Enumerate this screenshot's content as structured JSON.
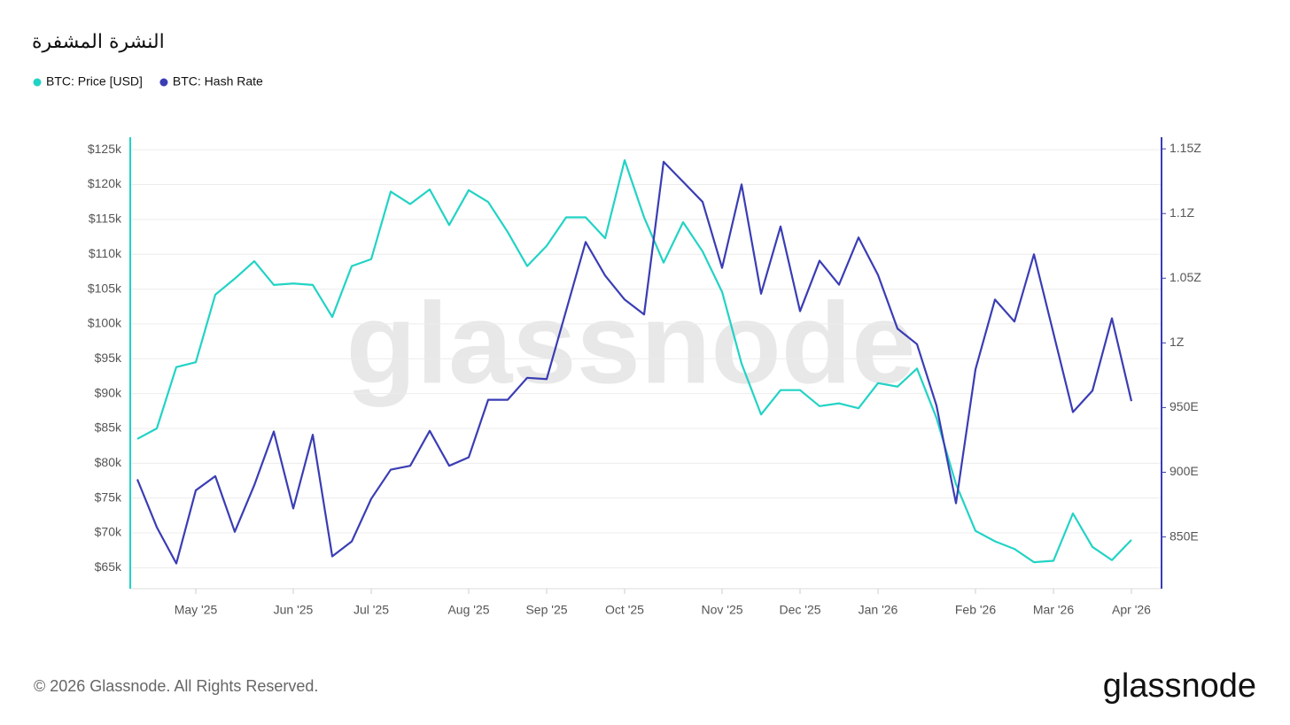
{
  "chart_data": {
    "type": "line",
    "title": "النشرة المشفرة",
    "categories": [
      null,
      null,
      null,
      "May '25",
      null,
      null,
      null,
      null,
      "Jun '25",
      null,
      null,
      null,
      "Jul '25",
      null,
      null,
      null,
      null,
      "Aug '25",
      null,
      null,
      null,
      "Sep '25",
      null,
      null,
      null,
      "Oct '25",
      null,
      null,
      null,
      null,
      "Nov '25",
      null,
      null,
      null,
      "Dec '25",
      null,
      null,
      null,
      "Jan '26",
      null,
      null,
      null,
      null,
      "Feb '26",
      null,
      null,
      null,
      "Mar '26",
      null,
      null,
      null,
      "Apr '26"
    ],
    "series": [
      {
        "name": "BTC: Price [USD]",
        "color": "#22d3c5",
        "values": [
          83500,
          85000,
          93800,
          94500,
          104200,
          106500,
          109000,
          105600,
          105800,
          105600,
          101000,
          108300,
          109300,
          119000,
          117200,
          119300,
          114200,
          119200,
          117500,
          113200,
          108300,
          111200,
          115300,
          115300,
          112300,
          123500,
          115300,
          108800,
          114600,
          110400,
          104600,
          94300,
          87000,
          90500,
          90500,
          88200,
          88600,
          87900,
          91500,
          91000,
          93600,
          86500,
          77000,
          70300,
          68800,
          67700,
          65800,
          66000,
          72800,
          68000,
          66100,
          69000
        ]
      },
      {
        "name": "BTC: Hash Rate",
        "color": "#3a3db4",
        "axis": "y2",
        "values": [
          894.5,
          857.5,
          829.5,
          886,
          897,
          854,
          890,
          931.5,
          872,
          929,
          835,
          846.5,
          879.5,
          902,
          905,
          932,
          905,
          911.5,
          956,
          956,
          973,
          972,
          1025,
          1078,
          1052,
          1033.5,
          1022,
          1140,
          1124.5,
          1109,
          1058,
          1122.5,
          1038,
          1090,
          1024.5,
          1063.5,
          1045,
          1081.5,
          1052.5,
          1011,
          999,
          951.5,
          876,
          979.5,
          1033.5,
          1016.5,
          1068.5,
          1007.5,
          946.5,
          963,
          1019,
          955
        ]
      }
    ],
    "ylim": [
      62000,
      126800
    ],
    "yticks": [
      {
        "value": 65000,
        "label": "$65k"
      },
      {
        "value": 70000,
        "label": "$70k"
      },
      {
        "value": 75000,
        "label": "$75k"
      },
      {
        "value": 80000,
        "label": "$80k"
      },
      {
        "value": 85000,
        "label": "$85k"
      },
      {
        "value": 90000,
        "label": "$90k"
      },
      {
        "value": 95000,
        "label": "$95k"
      },
      {
        "value": 100000,
        "label": "$100k"
      },
      {
        "value": 105000,
        "label": "$105k"
      },
      {
        "value": 110000,
        "label": "$110k"
      },
      {
        "value": 115000,
        "label": "$115k"
      },
      {
        "value": 120000,
        "label": "$120k"
      },
      {
        "value": 125000,
        "label": "$125k"
      }
    ],
    "y2lim": [
      810,
      1159
    ],
    "y2ticks": [
      {
        "value": 850,
        "label": "850E"
      },
      {
        "value": 900,
        "label": "900E"
      },
      {
        "value": 950,
        "label": "950E"
      },
      {
        "value": 1000,
        "label": "1Z"
      },
      {
        "value": 1050,
        "label": "1.05Z"
      },
      {
        "value": 1100,
        "label": "1.1Z"
      },
      {
        "value": 1150,
        "label": "1.15Z"
      }
    ],
    "grid": true,
    "watermark": "glassnode",
    "footer": "© 2026 Glassnode. All Rights Reserved.",
    "brand": "glassnode"
  }
}
